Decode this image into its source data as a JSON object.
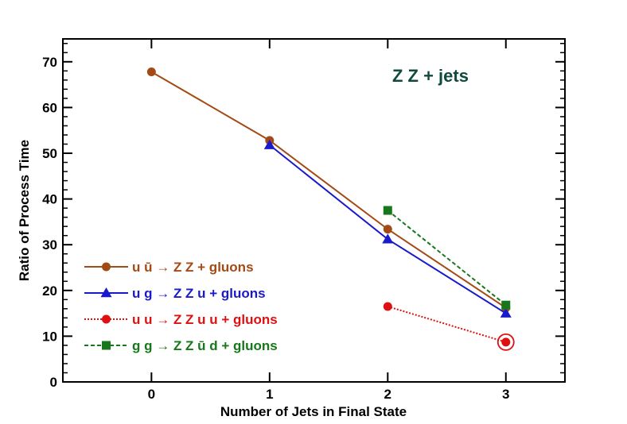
{
  "chart_data": {
    "type": "line",
    "title": "",
    "annotation": {
      "text": "Z Z + jets",
      "color": "#0e4a3e"
    },
    "xlabel": "Number of Jets in Final State",
    "ylabel": "Ratio of Process Time",
    "xlim": [
      -0.75,
      3.5
    ],
    "ylim": [
      0,
      75
    ],
    "xticks": [
      0,
      1,
      2,
      3
    ],
    "yticks": [
      0,
      10,
      20,
      30,
      40,
      50,
      60,
      70
    ],
    "legend_position": "lower-left",
    "series": [
      {
        "name": "u ū → Z Z + gluons",
        "color": "#a34a15",
        "marker": "circle",
        "line": "solid",
        "x": [
          0,
          1,
          2,
          3
        ],
        "y": [
          67.8,
          52.8,
          33.4,
          16.2
        ]
      },
      {
        "name": "u g → Z Z u + gluons",
        "color": "#1a1acc",
        "marker": "triangle",
        "line": "solid",
        "x": [
          1,
          2,
          3
        ],
        "y": [
          51.8,
          31.2,
          15.0
        ]
      },
      {
        "name": "u u → Z Z u u + gluons",
        "color": "#dd1111",
        "marker": "circle",
        "line": "dotted",
        "x": [
          2,
          3
        ],
        "y": [
          16.5,
          8.7
        ],
        "circled_last": true
      },
      {
        "name": "g g → Z Z ū d + gluons",
        "color": "#17771a",
        "marker": "square",
        "line": "dashed",
        "x": [
          2,
          3
        ],
        "y": [
          37.5,
          16.8
        ]
      }
    ]
  }
}
